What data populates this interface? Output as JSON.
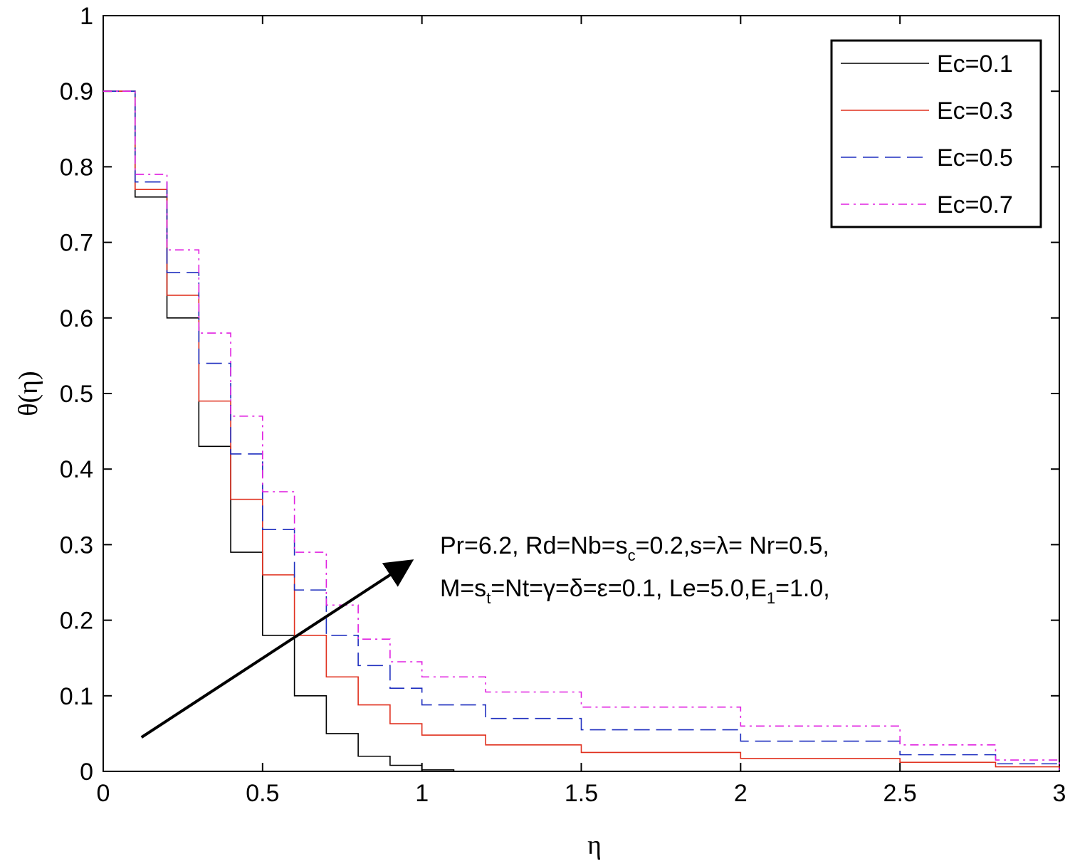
{
  "chart_data": {
    "type": "line",
    "xlabel": "η",
    "ylabel": "θ(η)",
    "xlim": [
      0,
      3
    ],
    "ylim": [
      0,
      1
    ],
    "xticks": [
      "0",
      "0.5",
      "1",
      "1.5",
      "2",
      "2.5",
      "3"
    ],
    "yticks": [
      "0",
      "0.1",
      "0.2",
      "0.3",
      "0.4",
      "0.5",
      "0.6",
      "0.7",
      "0.8",
      "0.9",
      "1"
    ],
    "grid": false,
    "legend_position": "top-right",
    "series": [
      {
        "name": "Ec=0.1",
        "color": "#000000",
        "style": "solid",
        "x": [
          0,
          0.1,
          0.2,
          0.3,
          0.4,
          0.5,
          0.6,
          0.7,
          0.8,
          0.9,
          1.0,
          1.1
        ],
        "y": [
          0.9,
          0.76,
          0.6,
          0.43,
          0.29,
          0.18,
          0.1,
          0.05,
          0.02,
          0.008,
          0.002,
          0.0
        ]
      },
      {
        "name": "Ec=0.3",
        "color": "#e0301e",
        "style": "solid",
        "x": [
          0,
          0.1,
          0.2,
          0.3,
          0.4,
          0.5,
          0.6,
          0.7,
          0.8,
          0.9,
          1.0,
          1.2,
          1.5,
          2.0,
          2.5,
          2.8,
          3.0
        ],
        "y": [
          0.9,
          0.77,
          0.63,
          0.49,
          0.36,
          0.26,
          0.18,
          0.125,
          0.088,
          0.063,
          0.048,
          0.035,
          0.025,
          0.017,
          0.012,
          0.006,
          0.002
        ]
      },
      {
        "name": "Ec=0.5",
        "color": "#1f2fbf",
        "style": "dashed",
        "x": [
          0,
          0.1,
          0.2,
          0.3,
          0.4,
          0.5,
          0.6,
          0.7,
          0.8,
          0.9,
          1.0,
          1.2,
          1.5,
          2.0,
          2.5,
          2.8,
          3.0
        ],
        "y": [
          0.9,
          0.78,
          0.66,
          0.54,
          0.42,
          0.32,
          0.24,
          0.18,
          0.14,
          0.11,
          0.088,
          0.07,
          0.055,
          0.04,
          0.022,
          0.01,
          0.002
        ]
      },
      {
        "name": "Ec=0.7",
        "color": "#e020e0",
        "style": "dashdot",
        "x": [
          0,
          0.1,
          0.2,
          0.3,
          0.4,
          0.5,
          0.6,
          0.7,
          0.8,
          0.9,
          1.0,
          1.2,
          1.5,
          2.0,
          2.5,
          2.8,
          3.0
        ],
        "y": [
          0.9,
          0.79,
          0.69,
          0.58,
          0.47,
          0.37,
          0.29,
          0.22,
          0.175,
          0.145,
          0.125,
          0.105,
          0.085,
          0.06,
          0.035,
          0.015,
          0.002
        ]
      }
    ],
    "annotation": {
      "line1": {
        "a": "Pr=6.2, Rd=Nb=s",
        "a_sub": "c",
        "b": "=0.2,s=λ= Nr=0.5,"
      },
      "line2": {
        "a": "M=s",
        "a_sub": "t",
        "b": "=Nt=γ=δ=ε=0.1, Le=5.0,E",
        "b_sub": "1",
        "c": "=1.0,"
      },
      "arrow": {
        "from": [
          0.12,
          0.045
        ],
        "to": [
          0.97,
          0.28
        ]
      }
    }
  }
}
